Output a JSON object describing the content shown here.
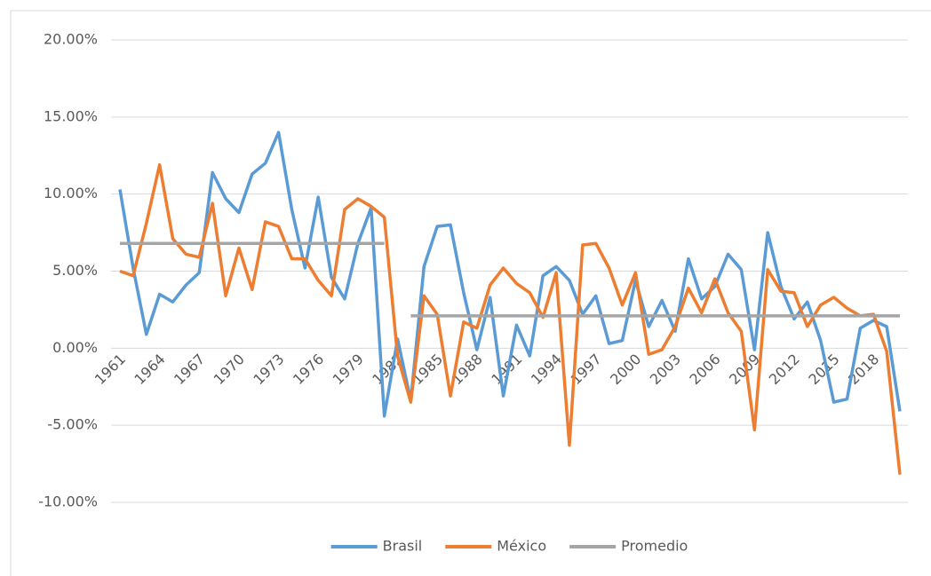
{
  "chart_data": {
    "type": "line",
    "categories": [
      "1961",
      null,
      null,
      "1964",
      null,
      null,
      "1967",
      null,
      null,
      "1970",
      null,
      null,
      "1973",
      null,
      null,
      "1976",
      null,
      null,
      "1979",
      null,
      null,
      "1982",
      null,
      null,
      "1985",
      null,
      null,
      "1988",
      null,
      null,
      "1991",
      null,
      null,
      "1994",
      null,
      null,
      "1997",
      null,
      null,
      "2000",
      null,
      null,
      "2003",
      null,
      null,
      "2006",
      null,
      null,
      "2009",
      null,
      null,
      "2012",
      null,
      null,
      "2015",
      null,
      null,
      "2018",
      null,
      null
    ],
    "series": [
      {
        "name": "Brasil",
        "color": "#5b9bd5",
        "values": [
          10.3,
          5.2,
          0.9,
          3.5,
          3.0,
          4.1,
          4.9,
          11.4,
          9.7,
          8.8,
          11.3,
          12.0,
          14.0,
          9.0,
          5.2,
          9.8,
          4.6,
          3.2,
          6.8,
          9.1,
          -4.4,
          0.6,
          -3.4,
          5.3,
          7.9,
          8.0,
          3.6,
          -0.1,
          3.3,
          -3.1,
          1.5,
          -0.5,
          4.7,
          5.3,
          4.4,
          2.2,
          3.4,
          0.3,
          0.5,
          4.4,
          1.4,
          3.1,
          1.1,
          5.8,
          3.2,
          4.0,
          6.1,
          5.1,
          -0.1,
          7.5,
          4.0,
          1.9,
          3.0,
          0.5,
          -3.5,
          -3.3,
          1.3,
          1.8,
          1.4,
          -4.1
        ]
      },
      {
        "name": "México",
        "color": "#ed7d31",
        "values": [
          5.0,
          4.7,
          8.1,
          11.9,
          7.1,
          6.1,
          5.9,
          9.4,
          3.4,
          6.5,
          3.8,
          8.2,
          7.9,
          5.8,
          5.8,
          4.4,
          3.4,
          9.0,
          9.7,
          9.2,
          8.5,
          -0.5,
          -3.5,
          3.4,
          2.2,
          -3.1,
          1.7,
          1.3,
          4.1,
          5.2,
          4.2,
          3.6,
          2.0,
          4.9,
          -6.3,
          6.7,
          6.8,
          5.2,
          2.8,
          4.9,
          -0.4,
          -0.1,
          1.4,
          3.9,
          2.3,
          4.5,
          2.3,
          1.1,
          -5.3,
          5.1,
          3.7,
          3.6,
          1.4,
          2.8,
          3.3,
          2.6,
          2.1,
          2.2,
          -0.2,
          -8.2
        ]
      },
      {
        "name": "Promedio",
        "color": "#a5a5a5",
        "values": [
          6.8,
          6.8,
          6.8,
          6.8,
          6.8,
          6.8,
          6.8,
          6.8,
          6.8,
          6.8,
          6.8,
          6.8,
          6.8,
          6.8,
          6.8,
          6.8,
          6.8,
          6.8,
          6.8,
          6.8,
          6.8,
          null,
          2.1,
          2.1,
          2.1,
          2.1,
          2.1,
          2.1,
          2.1,
          2.1,
          2.1,
          2.1,
          2.1,
          2.1,
          2.1,
          2.1,
          2.1,
          2.1,
          2.1,
          2.1,
          2.1,
          2.1,
          2.1,
          2.1,
          2.1,
          2.1,
          2.1,
          2.1,
          2.1,
          2.1,
          2.1,
          2.1,
          2.1,
          2.1,
          2.1,
          2.1,
          2.1,
          2.1,
          2.1,
          2.1
        ]
      }
    ],
    "ylim": [
      -10,
      20
    ],
    "yticks": [
      {
        "value": -10,
        "label": "-10.00%"
      },
      {
        "value": -5,
        "label": "-5.00%"
      },
      {
        "value": 0,
        "label": "0.00%"
      },
      {
        "value": 5,
        "label": "5.00%"
      },
      {
        "value": 10,
        "label": "10.00%"
      },
      {
        "value": 15,
        "label": "15.00%"
      },
      {
        "value": 20,
        "label": "20.00%"
      }
    ],
    "grid": true,
    "legend": "bottom"
  }
}
